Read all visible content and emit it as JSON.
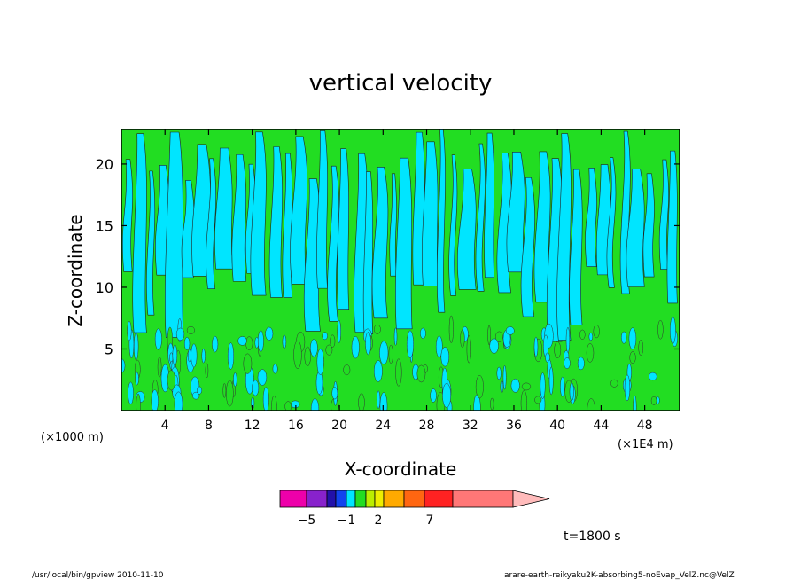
{
  "chart_data": {
    "type": "contour",
    "title": "vertical velocity",
    "xlabel": "X-coordinate",
    "ylabel": "Z-coordinate",
    "x_unit_left": "(×1000 m)",
    "x_unit_right": "(×1E4 m)",
    "xlim": [
      0,
      51.2
    ],
    "ylim": [
      0,
      22.8
    ],
    "x_ticks": [
      4,
      8,
      12,
      16,
      20,
      24,
      28,
      32,
      36,
      40,
      44,
      48
    ],
    "y_ticks": [
      5,
      10,
      15,
      20
    ],
    "fill_levels": [
      {
        "color": "#ee00aa"
      },
      {
        "color": "#8822cc"
      },
      {
        "color": "#2211aa"
      },
      {
        "color": "#1144ee"
      },
      {
        "color": "#00e5ff"
      },
      {
        "color": "#22dd22"
      },
      {
        "color": "#bbee00"
      },
      {
        "color": "#eeee00"
      },
      {
        "color": "#ffaa00"
      },
      {
        "color": "#ff6611"
      },
      {
        "color": "#ff2222"
      },
      {
        "color": "#ff7777"
      },
      {
        "color": "#ffbbbb"
      }
    ],
    "colorbar_labels": [
      "−5",
      "−1",
      "2",
      "7"
    ],
    "time_label": "t=1800 s"
  },
  "footer": {
    "program": "/usr/local/bin/gpview   2010-11-10",
    "file": "arare-earth-reikyaku2K-absorbing5-noEvap_VelZ.nc@VelZ"
  }
}
